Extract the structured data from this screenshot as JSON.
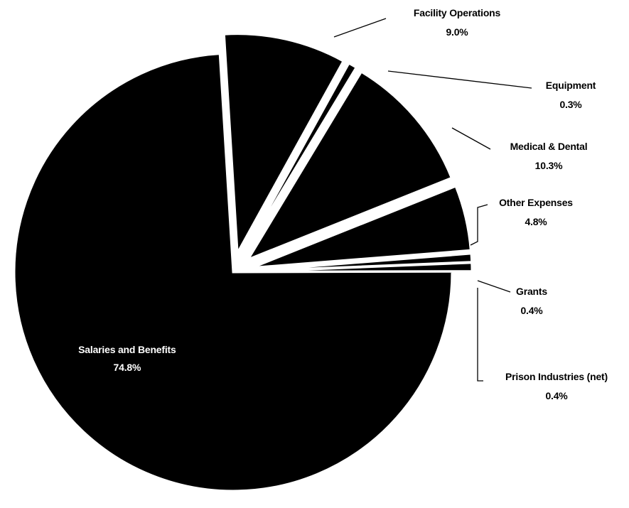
{
  "chart_data": {
    "type": "pie",
    "title": "",
    "slices": [
      {
        "label": "Salaries and Benefits",
        "value": 74.8,
        "value_label": "74.8%",
        "exploded": false
      },
      {
        "label": "Facility Operations",
        "value": 9.0,
        "value_label": "9.0%",
        "exploded": true
      },
      {
        "label": "Equipment",
        "value": 0.3,
        "value_label": "0.3%",
        "exploded": true
      },
      {
        "label": "Medical & Dental",
        "value": 10.3,
        "value_label": "10.3%",
        "exploded": true
      },
      {
        "label": "Other Expenses",
        "value": 4.8,
        "value_label": "4.8%",
        "exploded": true
      },
      {
        "label": "Grants",
        "value": 0.4,
        "value_label": "0.4%",
        "exploded": true
      },
      {
        "label": "Prison Industries (net)",
        "value": 0.4,
        "value_label": "0.4%",
        "exploded": true
      }
    ],
    "colors": {
      "slice_fill": "#000000",
      "slice_border": "#ffffff",
      "label_inside": "#ffffff",
      "label_outside": "#000000",
      "background": "#ffffff"
    }
  }
}
